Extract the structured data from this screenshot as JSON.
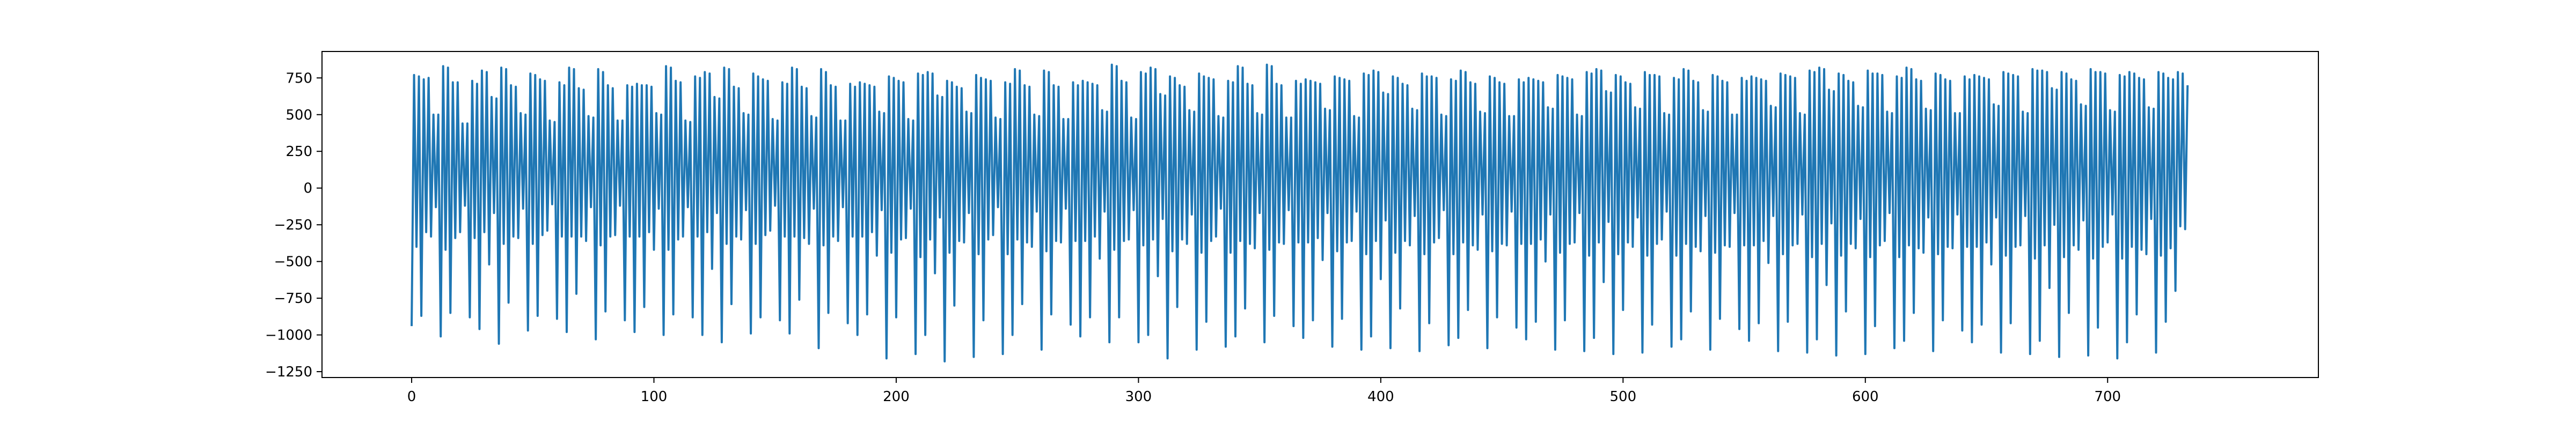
{
  "chart_data": {
    "type": "line",
    "title": "",
    "xlabel": "",
    "ylabel": "",
    "xlim": [
      -37,
      787
    ],
    "ylim": [
      -1290,
      930
    ],
    "xticks": [
      0,
      100,
      200,
      300,
      400,
      500,
      600,
      700
    ],
    "yticks": [
      -1250,
      -1000,
      -750,
      -500,
      -250,
      0,
      250,
      500,
      750
    ],
    "x_start": 0,
    "x_step": 1,
    "grid": false,
    "legend": "none",
    "series": [
      {
        "color": "#1f77b4",
        "values": [
          -940,
          770,
          -400,
          760,
          -870,
          740,
          -300,
          750,
          -330,
          500,
          -130,
          500,
          -1010,
          830,
          -420,
          820,
          -850,
          720,
          -340,
          720,
          -300,
          440,
          -120,
          440,
          -880,
          730,
          -340,
          710,
          -960,
          800,
          -300,
          790,
          -520,
          620,
          -170,
          610,
          -1060,
          820,
          -380,
          810,
          -780,
          700,
          -330,
          690,
          -340,
          510,
          -140,
          500,
          -970,
          780,
          -380,
          770,
          -870,
          740,
          -320,
          730,
          -290,
          460,
          -110,
          450,
          -890,
          720,
          -330,
          700,
          -980,
          820,
          -330,
          810,
          -720,
          680,
          -330,
          670,
          -360,
          490,
          -130,
          480,
          -1030,
          810,
          -390,
          790,
          -840,
          700,
          -330,
          680,
          -320,
          460,
          -120,
          460,
          -900,
          700,
          -330,
          690,
          -980,
          710,
          -330,
          700,
          -810,
          700,
          -300,
          690,
          -420,
          510,
          -140,
          500,
          -1000,
          830,
          -420,
          820,
          -860,
          730,
          -350,
          720,
          -330,
          460,
          -130,
          450,
          -880,
          760,
          -330,
          750,
          -1000,
          790,
          -300,
          780,
          -550,
          620,
          -170,
          610,
          -1050,
          820,
          -380,
          810,
          -790,
          690,
          -330,
          680,
          -350,
          510,
          -150,
          500,
          -990,
          780,
          -380,
          760,
          -880,
          740,
          -320,
          730,
          -290,
          470,
          -120,
          460,
          -900,
          720,
          -330,
          710,
          -990,
          820,
          -330,
          810,
          -760,
          690,
          -340,
          680,
          -380,
          490,
          -140,
          480,
          -1090,
          810,
          -390,
          790,
          -850,
          700,
          -330,
          690,
          -360,
          460,
          -130,
          460,
          -920,
          710,
          -330,
          690,
          -1000,
          720,
          -330,
          710,
          -860,
          700,
          -300,
          690,
          -460,
          520,
          -150,
          510,
          -1160,
          760,
          -440,
          750,
          -880,
          730,
          -350,
          720,
          -340,
          470,
          -140,
          460,
          -1130,
          780,
          -470,
          770,
          -1000,
          790,
          -350,
          780,
          -580,
          630,
          -200,
          620,
          -1180,
          730,
          -440,
          720,
          -800,
          690,
          -360,
          680,
          -370,
          520,
          -170,
          510,
          -1150,
          770,
          -450,
          750,
          -900,
          740,
          -350,
          730,
          -320,
          480,
          -130,
          470,
          -1130,
          720,
          -450,
          710,
          -1000,
          810,
          -350,
          800,
          -790,
          700,
          -370,
          690,
          -400,
          500,
          -160,
          490,
          -1100,
          800,
          -430,
          790,
          -860,
          700,
          -360,
          690,
          -370,
          470,
          -140,
          470,
          -930,
          720,
          -360,
          700,
          -1010,
          730,
          -360,
          720,
          -880,
          710,
          -330,
          700,
          -480,
          530,
          -160,
          520,
          -1050,
          840,
          -420,
          830,
          -880,
          730,
          -360,
          720,
          -350,
          480,
          -150,
          470,
          -1050,
          790,
          -390,
          780,
          -1000,
          820,
          -350,
          810,
          -600,
          640,
          -210,
          630,
          -1160,
          760,
          -430,
          750,
          -810,
          700,
          -350,
          690,
          -380,
          530,
          -180,
          520,
          -1100,
          780,
          -440,
          760,
          -910,
          750,
          -360,
          740,
          -330,
          490,
          -140,
          480,
          -1080,
          730,
          -440,
          720,
          -1010,
          830,
          -360,
          820,
          -820,
          710,
          -380,
          700,
          -410,
          510,
          -170,
          500,
          -1050,
          840,
          -420,
          830,
          -870,
          710,
          -370,
          700,
          -380,
          480,
          -150,
          480,
          -940,
          730,
          -370,
          710,
          -1020,
          740,
          -370,
          730,
          -900,
          720,
          -340,
          710,
          -490,
          540,
          -170,
          530,
          -1080,
          760,
          -430,
          750,
          -890,
          740,
          -370,
          730,
          -360,
          490,
          -160,
          480,
          -1100,
          780,
          -450,
          770,
          -1010,
          800,
          -360,
          790,
          -620,
          650,
          -220,
          640,
          -1090,
          760,
          -440,
          750,
          -820,
          710,
          -360,
          700,
          -390,
          540,
          -190,
          530,
          -1110,
          780,
          -450,
          760,
          -920,
          760,
          -370,
          750,
          -340,
          500,
          -150,
          490,
          -1070,
          740,
          -450,
          730,
          -1020,
          800,
          -370,
          790,
          -830,
          720,
          -390,
          710,
          -420,
          520,
          -180,
          510,
          -1090,
          760,
          -430,
          750,
          -880,
          720,
          -380,
          710,
          -390,
          490,
          -160,
          490,
          -950,
          740,
          -380,
          720,
          -1030,
          750,
          -380,
          740,
          -910,
          730,
          -350,
          720,
          -500,
          550,
          -180,
          540,
          -1100,
          770,
          -440,
          760,
          -900,
          750,
          -380,
          740,
          -370,
          500,
          -170,
          490,
          -1110,
          790,
          -460,
          780,
          -1020,
          810,
          -370,
          800,
          -640,
          660,
          -230,
          650,
          -1130,
          770,
          -450,
          760,
          -830,
          720,
          -370,
          710,
          -400,
          550,
          -200,
          540,
          -1120,
          790,
          -460,
          770,
          -930,
          770,
          -380,
          760,
          -350,
          510,
          -160,
          500,
          -1080,
          750,
          -460,
          740,
          -1030,
          810,
          -380,
          800,
          -840,
          730,
          -400,
          720,
          -430,
          530,
          -190,
          520,
          -1100,
          770,
          -440,
          760,
          -890,
          730,
          -390,
          720,
          -400,
          500,
          -170,
          500,
          -960,
          750,
          -390,
          730,
          -1040,
          760,
          -390,
          750,
          -920,
          740,
          -360,
          730,
          -510,
          560,
          -190,
          550,
          -1110,
          780,
          -450,
          770,
          -910,
          760,
          -390,
          750,
          -380,
          510,
          -180,
          500,
          -1120,
          800,
          -470,
          790,
          -1030,
          820,
          -380,
          810,
          -660,
          670,
          -240,
          660,
          -1140,
          780,
          -460,
          770,
          -840,
          730,
          -380,
          720,
          -410,
          560,
          -210,
          550,
          -1130,
          800,
          -470,
          780,
          -940,
          780,
          -390,
          770,
          -360,
          520,
          -170,
          510,
          -1090,
          760,
          -470,
          750,
          -1040,
          820,
          -390,
          810,
          -850,
          740,
          -410,
          730,
          -440,
          540,
          -200,
          530,
          -1110,
          780,
          -450,
          770,
          -900,
          740,
          -400,
          730,
          -410,
          510,
          -180,
          510,
          -970,
          760,
          -400,
          740,
          -1050,
          770,
          -400,
          760,
          -930,
          750,
          -370,
          740,
          -520,
          570,
          -200,
          560,
          -1120,
          790,
          -460,
          780,
          -920,
          770,
          -400,
          760,
          -390,
          520,
          -190,
          510,
          -1130,
          810,
          -480,
          800,
          -1040,
          800,
          -390,
          790,
          -680,
          680,
          -250,
          670,
          -1150,
          790,
          -470,
          780,
          -850,
          740,
          -390,
          730,
          -420,
          570,
          -220,
          560,
          -1140,
          810,
          -480,
          790,
          -950,
          790,
          -400,
          780,
          -370,
          530,
          -180,
          520,
          -1160,
          770,
          -480,
          760,
          -1050,
          790,
          -400,
          780,
          -860,
          750,
          -420,
          740,
          -450,
          550,
          -210,
          540,
          -1120,
          790,
          -460,
          780,
          -910,
          750,
          -410,
          740,
          -700,
          790,
          -260,
          780,
          -280,
          700
        ]
      }
    ]
  }
}
